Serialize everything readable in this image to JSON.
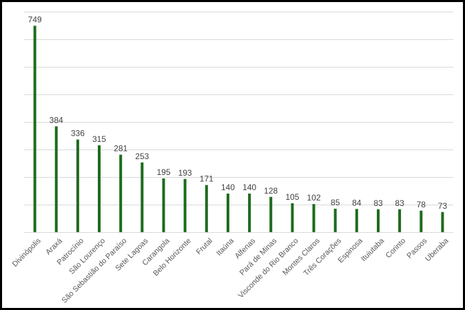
{
  "chart_data": {
    "type": "bar",
    "title": "",
    "xlabel": "",
    "ylabel": "",
    "ylim": [
      0,
      800
    ],
    "grid": true,
    "gridlines": [
      0,
      100,
      200,
      300,
      400,
      500,
      600,
      700,
      800
    ],
    "categories": [
      "Divinópolis",
      "Araxá",
      "Patrocínio",
      "São Lourenço",
      "São Sebastião do Paraíso",
      "Sete Lagoas",
      "Carangola",
      "Belo Horizonte",
      "Frutal",
      "Itaúna",
      "Alfenas",
      "Pará de Minas",
      "Visconde do Rio Branco",
      "Montes Claros",
      "Três Corações",
      "Espinosa",
      "Ituiutaba",
      "Corinto",
      "Passos",
      "Uberaba"
    ],
    "values": [
      749,
      384,
      336,
      315,
      281,
      253,
      195,
      193,
      171,
      140,
      140,
      128,
      105,
      102,
      85,
      84,
      83,
      83,
      78,
      73
    ],
    "value_labels": [
      "749",
      "384",
      "336",
      "315",
      "281",
      "253",
      "195",
      "193",
      "171",
      "140",
      "140",
      "128",
      "105",
      "102",
      "85",
      "84",
      "83",
      "83",
      "78",
      "73"
    ],
    "bar_color": "#1e6b1e",
    "gridline_color": "#d9d9d9"
  }
}
